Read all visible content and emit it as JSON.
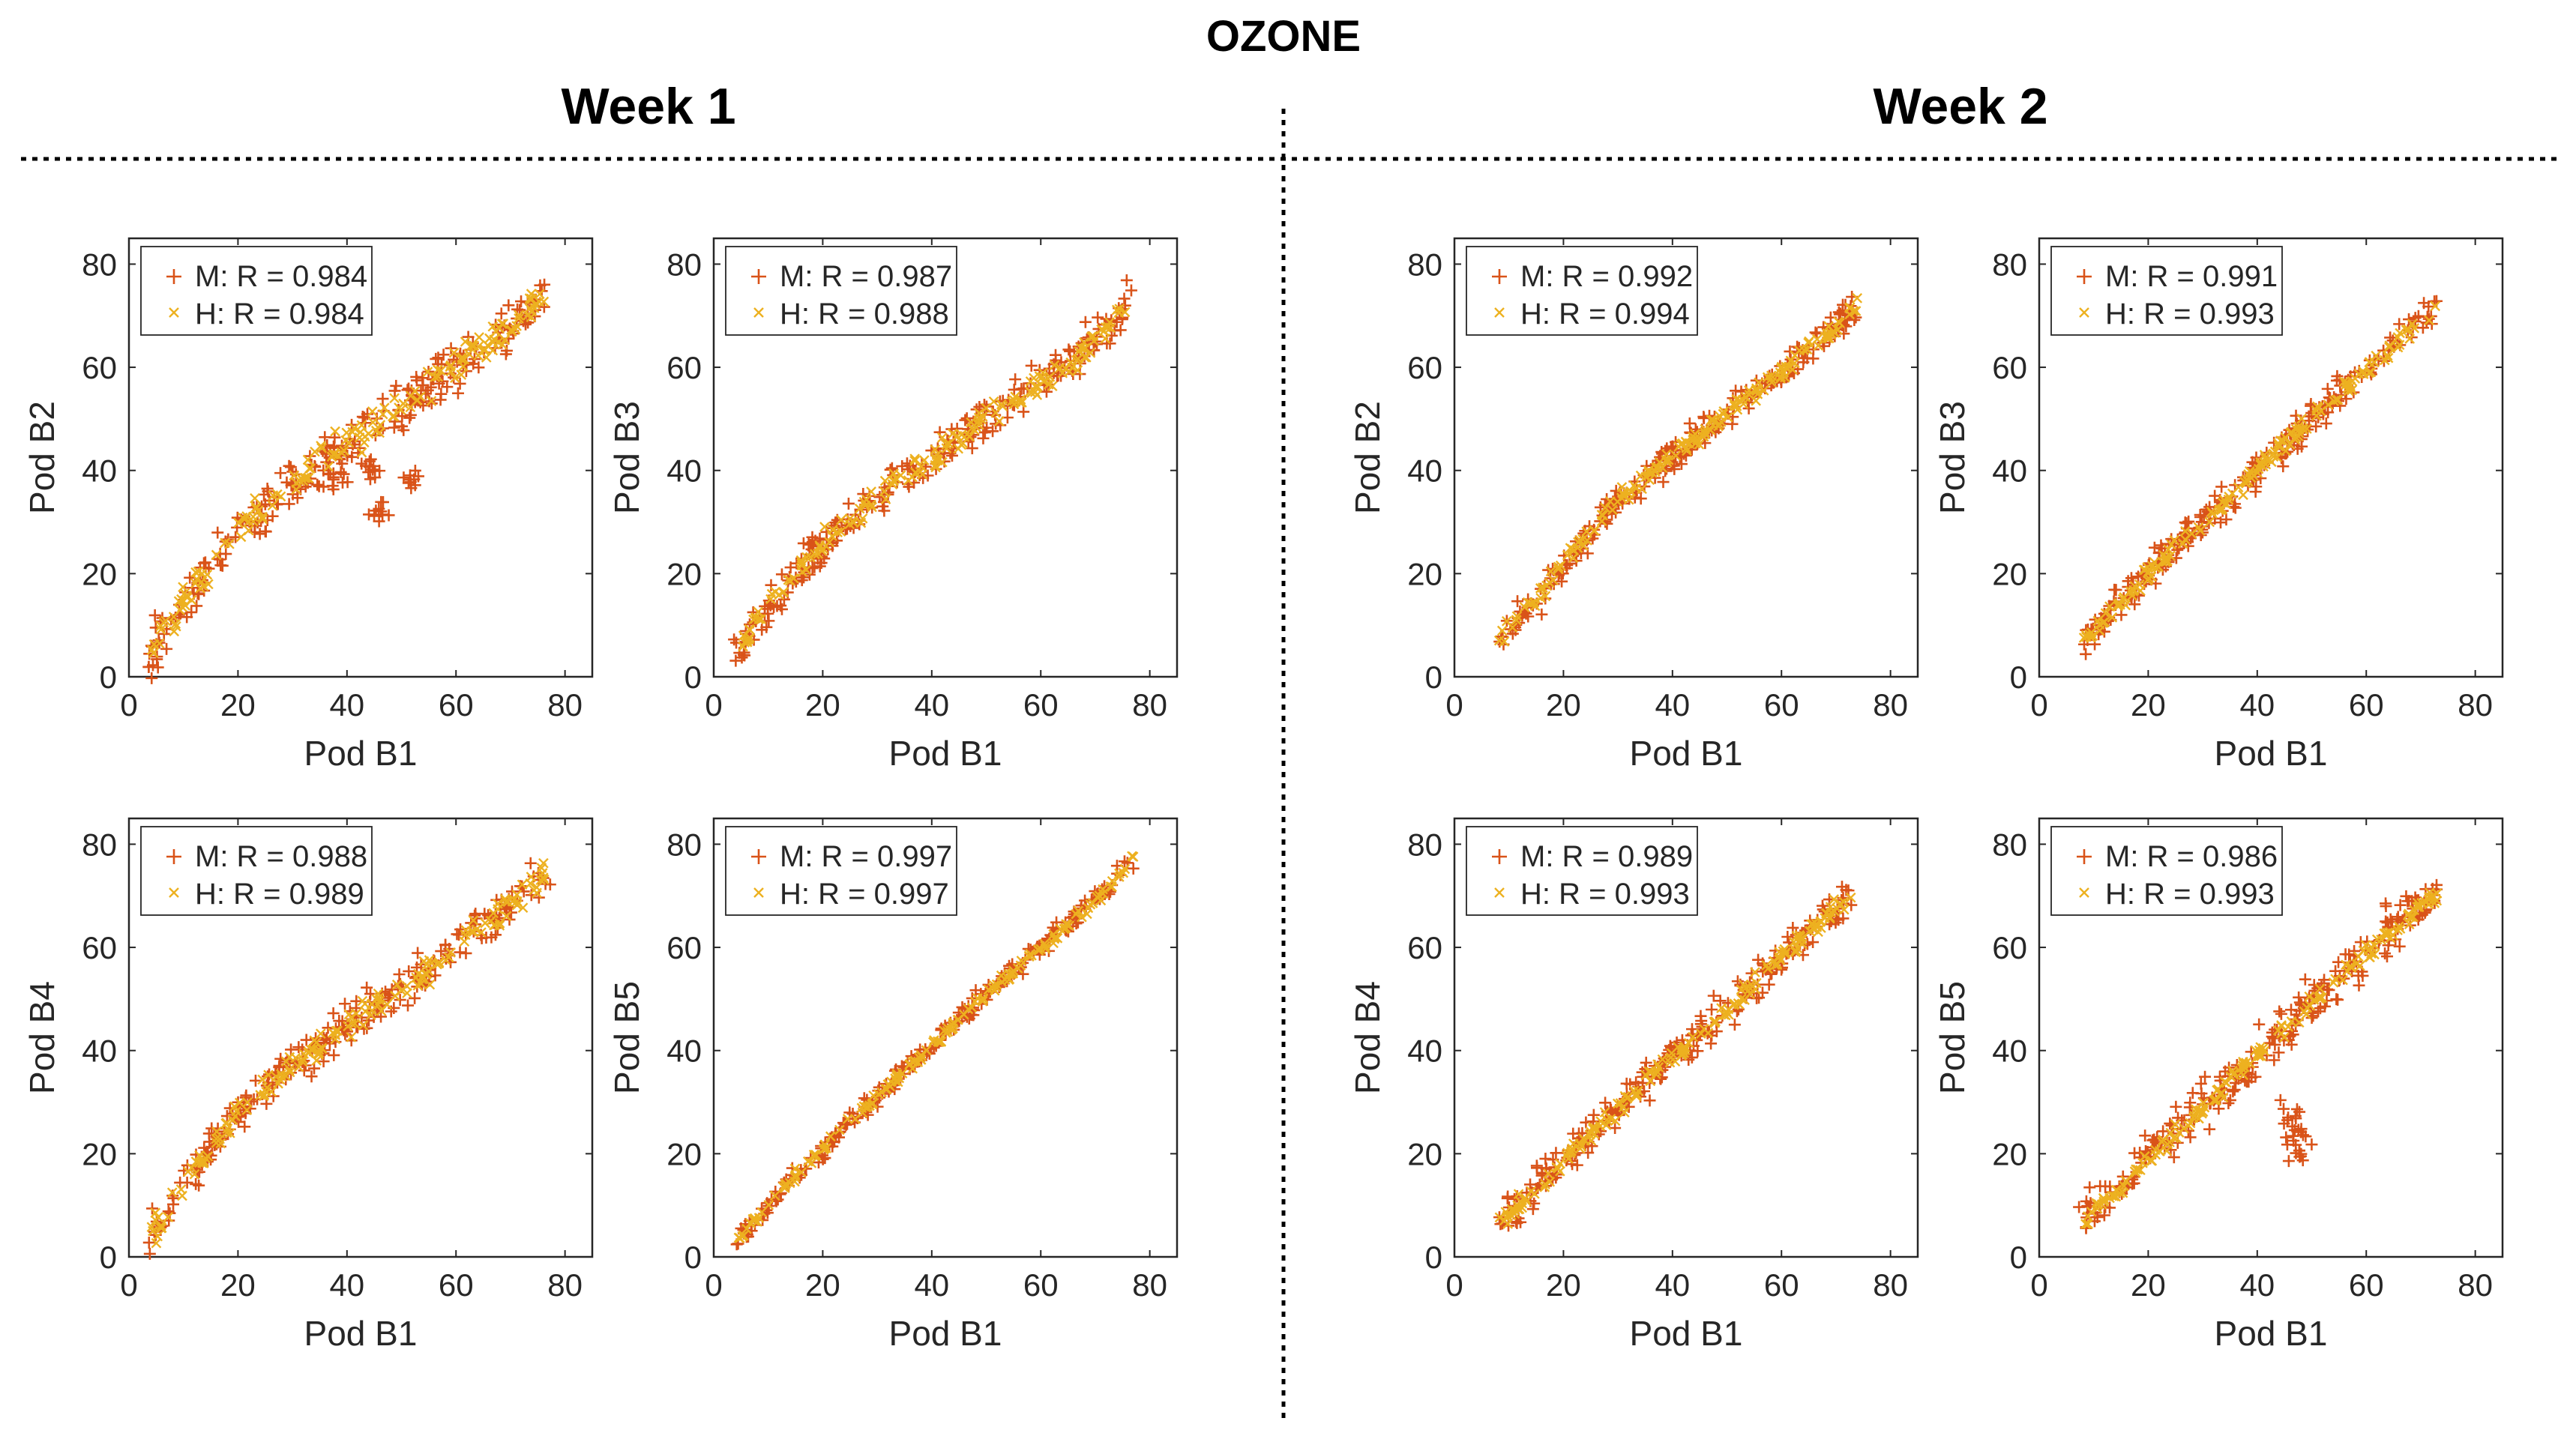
{
  "figure": {
    "title": "OZONE",
    "week_titles": [
      "Week 1",
      "Week 2"
    ]
  },
  "colors": {
    "M": "#D95319",
    "H": "#EDB120",
    "axis": "#262626",
    "separator": "#000000"
  },
  "chart_data": [
    {
      "type": "scatter",
      "week": "Week 1",
      "xlabel": "Pod B1",
      "ylabel": "Pod B2",
      "xlim": [
        0,
        85
      ],
      "ylim": [
        0,
        85
      ],
      "xticks": [
        0,
        20,
        40,
        60,
        80
      ],
      "yticks": [
        0,
        20,
        40,
        60,
        80
      ],
      "legend": [
        "M: R = 0.984",
        "H: R = 0.984"
      ],
      "legend_position": "top-left",
      "series": [
        {
          "name": "M",
          "marker": "+",
          "r": 0.984
        },
        {
          "name": "H",
          "marker": "x",
          "r": 0.984
        }
      ],
      "trend": [
        [
          4,
          4
        ],
        [
          10,
          14
        ],
        [
          20,
          28
        ],
        [
          30,
          38
        ],
        [
          40,
          45
        ],
        [
          50,
          52
        ],
        [
          60,
          60
        ],
        [
          70,
          68
        ],
        [
          77,
          75
        ]
      ],
      "excursion": [
        [
          38,
          38
        ],
        [
          45,
          40
        ],
        [
          52,
          38
        ],
        [
          46,
          32
        ]
      ]
    },
    {
      "type": "scatter",
      "week": "Week 1",
      "xlabel": "Pod B1",
      "ylabel": "Pod B3",
      "xlim": [
        0,
        85
      ],
      "ylim": [
        0,
        85
      ],
      "xticks": [
        0,
        20,
        40,
        60,
        80
      ],
      "yticks": [
        0,
        20,
        40,
        60,
        80
      ],
      "legend": [
        "M: R = 0.987",
        "H: R = 0.988"
      ],
      "legend_position": "top-left",
      "series": [
        {
          "name": "M",
          "marker": "+",
          "r": 0.987
        },
        {
          "name": "H",
          "marker": "x",
          "r": 0.988
        }
      ],
      "trend": [
        [
          4,
          4
        ],
        [
          10,
          14
        ],
        [
          20,
          26
        ],
        [
          30,
          35
        ],
        [
          40,
          42
        ],
        [
          50,
          50
        ],
        [
          60,
          57
        ],
        [
          70,
          65
        ],
        [
          77,
          73
        ]
      ]
    },
    {
      "type": "scatter",
      "week": "Week 2",
      "xlabel": "Pod B1",
      "ylabel": "Pod B2",
      "xlim": [
        0,
        85
      ],
      "ylim": [
        0,
        85
      ],
      "xticks": [
        0,
        20,
        40,
        60,
        80
      ],
      "yticks": [
        0,
        20,
        40,
        60,
        80
      ],
      "legend": [
        "M: R = 0.992",
        "H: R = 0.994"
      ],
      "legend_position": "top-left",
      "series": [
        {
          "name": "M",
          "marker": "+",
          "r": 0.992
        },
        {
          "name": "H",
          "marker": "x",
          "r": 0.994
        }
      ],
      "trend": [
        [
          8,
          7
        ],
        [
          15,
          15
        ],
        [
          20,
          22
        ],
        [
          30,
          34
        ],
        [
          40,
          43
        ],
        [
          50,
          51
        ],
        [
          60,
          59
        ],
        [
          70,
          68
        ],
        [
          74,
          72
        ]
      ]
    },
    {
      "type": "scatter",
      "week": "Week 2",
      "xlabel": "Pod B1",
      "ylabel": "Pod B3",
      "xlim": [
        0,
        85
      ],
      "ylim": [
        0,
        85
      ],
      "xticks": [
        0,
        20,
        40,
        60,
        80
      ],
      "yticks": [
        0,
        20,
        40,
        60,
        80
      ],
      "legend": [
        "M: R = 0.991",
        "H: R = 0.993"
      ],
      "legend_position": "top-left",
      "series": [
        {
          "name": "M",
          "marker": "+",
          "r": 0.991
        },
        {
          "name": "H",
          "marker": "x",
          "r": 0.993
        }
      ],
      "trend": [
        [
          8,
          7
        ],
        [
          15,
          14
        ],
        [
          20,
          20
        ],
        [
          30,
          30
        ],
        [
          40,
          40
        ],
        [
          50,
          50
        ],
        [
          60,
          60
        ],
        [
          70,
          69
        ],
        [
          73,
          72
        ]
      ]
    },
    {
      "type": "scatter",
      "week": "Week 1",
      "xlabel": "Pod B1",
      "ylabel": "Pod B4",
      "xlim": [
        0,
        85
      ],
      "ylim": [
        0,
        85
      ],
      "xticks": [
        0,
        20,
        40,
        60,
        80
      ],
      "yticks": [
        0,
        20,
        40,
        60,
        80
      ],
      "legend": [
        "M: R = 0.988",
        "H: R = 0.989"
      ],
      "legend_position": "top-left",
      "series": [
        {
          "name": "M",
          "marker": "+",
          "r": 0.988
        },
        {
          "name": "H",
          "marker": "x",
          "r": 0.989
        }
      ],
      "trend": [
        [
          4,
          4
        ],
        [
          10,
          14
        ],
        [
          20,
          28
        ],
        [
          30,
          37
        ],
        [
          40,
          45
        ],
        [
          50,
          52
        ],
        [
          60,
          60
        ],
        [
          70,
          68
        ],
        [
          77,
          75
        ]
      ]
    },
    {
      "type": "scatter",
      "week": "Week 1",
      "xlabel": "Pod B1",
      "ylabel": "Pod B5",
      "xlim": [
        0,
        85
      ],
      "ylim": [
        0,
        85
      ],
      "xticks": [
        0,
        20,
        40,
        60,
        80
      ],
      "yticks": [
        0,
        20,
        40,
        60,
        80
      ],
      "legend": [
        "M: R = 0.997",
        "H: R = 0.997"
      ],
      "legend_position": "top-left",
      "series": [
        {
          "name": "M",
          "marker": "+",
          "r": 0.997
        },
        {
          "name": "H",
          "marker": "x",
          "r": 0.997
        }
      ],
      "trend": [
        [
          4,
          3
        ],
        [
          10,
          10
        ],
        [
          20,
          21
        ],
        [
          30,
          31
        ],
        [
          40,
          41
        ],
        [
          50,
          51
        ],
        [
          60,
          60
        ],
        [
          70,
          69
        ],
        [
          77,
          77
        ]
      ]
    },
    {
      "type": "scatter",
      "week": "Week 2",
      "xlabel": "Pod B1",
      "ylabel": "Pod B4",
      "xlim": [
        0,
        85
      ],
      "ylim": [
        0,
        85
      ],
      "xticks": [
        0,
        20,
        40,
        60,
        80
      ],
      "yticks": [
        0,
        20,
        40,
        60,
        80
      ],
      "legend": [
        "M: R = 0.989",
        "H: R = 0.993"
      ],
      "legend_position": "top-left",
      "series": [
        {
          "name": "M",
          "marker": "+",
          "r": 0.989
        },
        {
          "name": "H",
          "marker": "x",
          "r": 0.993
        }
      ],
      "trend": [
        [
          8,
          6
        ],
        [
          15,
          13
        ],
        [
          20,
          19
        ],
        [
          30,
          29
        ],
        [
          40,
          39
        ],
        [
          50,
          48
        ],
        [
          60,
          58
        ],
        [
          70,
          68
        ],
        [
          73,
          70
        ]
      ]
    },
    {
      "type": "scatter",
      "week": "Week 2",
      "xlabel": "Pod B1",
      "ylabel": "Pod B5",
      "xlim": [
        0,
        85
      ],
      "ylim": [
        0,
        85
      ],
      "xticks": [
        0,
        20,
        40,
        60,
        80
      ],
      "yticks": [
        0,
        20,
        40,
        60,
        80
      ],
      "legend": [
        "M: R = 0.986",
        "H: R = 0.993"
      ],
      "legend_position": "top-left",
      "series": [
        {
          "name": "M",
          "marker": "+",
          "r": 0.986
        },
        {
          "name": "H",
          "marker": "x",
          "r": 0.993
        }
      ],
      "trend": [
        [
          8,
          7
        ],
        [
          15,
          13
        ],
        [
          20,
          19
        ],
        [
          30,
          29
        ],
        [
          40,
          39
        ],
        [
          50,
          49
        ],
        [
          60,
          59
        ],
        [
          70,
          68
        ],
        [
          73,
          70
        ]
      ],
      "excursion": [
        [
          46,
          28
        ],
        [
          48,
          24
        ],
        [
          47,
          20
        ]
      ]
    }
  ]
}
